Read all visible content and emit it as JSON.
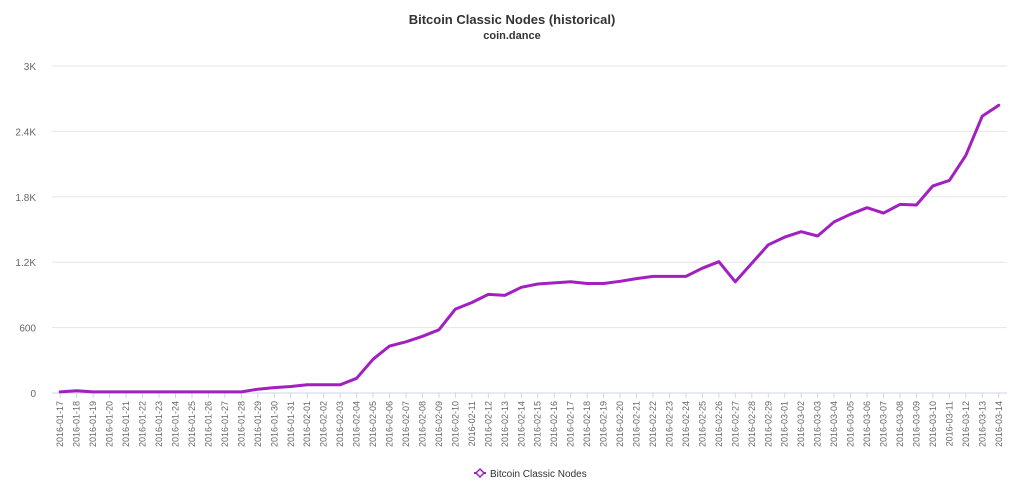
{
  "chart_data": {
    "type": "line",
    "title": "Bitcoin Classic Nodes (historical)",
    "subtitle": "coin.dance",
    "xlabel": "",
    "ylabel": "",
    "ylim": [
      0,
      3000
    ],
    "y_ticks": [
      0,
      600,
      1200,
      1800,
      2400,
      3000
    ],
    "y_tick_labels": [
      "0",
      "600",
      "1.2K",
      "1.8K",
      "2.4K",
      "3K"
    ],
    "grid": true,
    "legend_position": "bottom-center",
    "categories": [
      "2016-01-17",
      "2016-01-18",
      "2016-01-19",
      "2016-01-20",
      "2016-01-21",
      "2016-01-22",
      "2016-01-23",
      "2016-01-24",
      "2016-01-25",
      "2016-01-26",
      "2016-01-27",
      "2016-01-28",
      "2016-01-29",
      "2016-01-30",
      "2016-01-31",
      "2016-02-01",
      "2016-02-02",
      "2016-02-03",
      "2016-02-04",
      "2016-02-05",
      "2016-02-06",
      "2016-02-07",
      "2016-02-08",
      "2016-02-09",
      "2016-02-10",
      "2016-02-11",
      "2016-02-12",
      "2016-02-13",
      "2016-02-14",
      "2016-02-15",
      "2016-02-16",
      "2016-02-17",
      "2016-02-18",
      "2016-02-19",
      "2016-02-20",
      "2016-02-21",
      "2016-02-22",
      "2016-02-23",
      "2016-02-24",
      "2016-02-25",
      "2016-02-26",
      "2016-02-27",
      "2016-02-28",
      "2016-02-29",
      "2016-03-01",
      "2016-03-02",
      "2016-03-03",
      "2016-03-04",
      "2016-03-05",
      "2016-03-06",
      "2016-03-07",
      "2016-03-08",
      "2016-03-09",
      "2016-03-10",
      "2016-03-11",
      "2016-03-12",
      "2016-03-13",
      "2016-03-14"
    ],
    "series": [
      {
        "name": "Bitcoin Classic Nodes",
        "color": "#a020c0",
        "values": [
          10,
          20,
          10,
          10,
          10,
          10,
          10,
          10,
          10,
          10,
          10,
          10,
          35,
          50,
          60,
          75,
          75,
          75,
          135,
          310,
          430,
          470,
          520,
          580,
          770,
          830,
          905,
          895,
          970,
          1000,
          1010,
          1020,
          1005,
          1005,
          1025,
          1050,
          1070,
          1070,
          1070,
          1145,
          1205,
          1020,
          1190,
          1360,
          1430,
          1480,
          1440,
          1570,
          1640,
          1700,
          1650,
          1730,
          1725,
          1900,
          1950,
          2180,
          2540,
          2640
        ]
      }
    ]
  }
}
